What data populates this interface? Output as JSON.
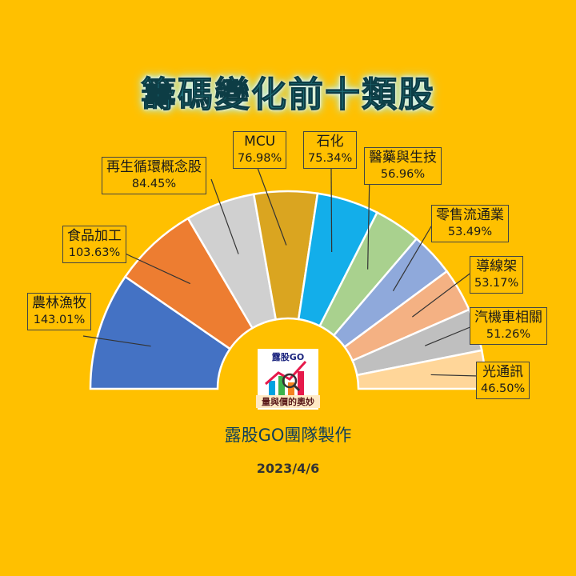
{
  "title": "籌碼變化前十類股",
  "credit": "露股GO團隊製作",
  "date": "2023/4/6",
  "logo": {
    "brand": "露股GO",
    "tagline": "量與價的奧妙"
  },
  "chart_data": {
    "type": "pie",
    "variant": "half-donut",
    "title": "籌碼變化前十類股",
    "categories": [
      "農林漁牧",
      "食品加工",
      "再生循環概念股",
      "MCU",
      "石化",
      "醫藥與生技",
      "零售流通業",
      "導線架",
      "汽機車相關",
      "光通訊"
    ],
    "values": [
      143.01,
      103.63,
      84.45,
      76.98,
      75.34,
      56.96,
      53.49,
      53.17,
      51.26,
      46.5
    ],
    "value_labels": [
      "143.01%",
      "103.63%",
      "84.45%",
      "76.98%",
      "75.34%",
      "56.96%",
      "53.49%",
      "53.17%",
      "51.26%",
      "46.50%"
    ],
    "colors": [
      "#4472C4",
      "#ED7D31",
      "#D0D0D0",
      "#DAA520",
      "#13AEEA",
      "#A9D18E",
      "#8FA9DB",
      "#F4B183",
      "#BFBFBF",
      "#FFD699"
    ],
    "unit": "%"
  }
}
